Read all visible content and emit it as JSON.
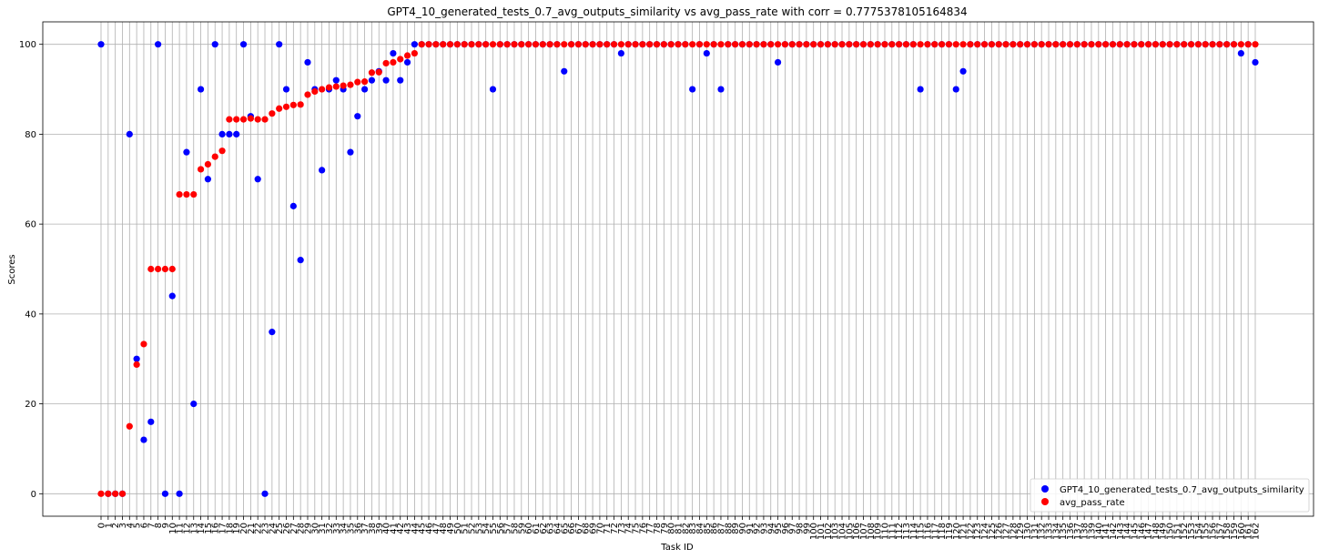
{
  "chart_data": {
    "type": "scatter",
    "title": "GPT4_10_generated_tests_0.7_avg_outputs_similarity vs avg_pass_rate with corr = 0.7775378105164834",
    "xlabel": "Task ID",
    "ylabel": "Scores",
    "x_range": [
      0,
      162
    ],
    "ylim": [
      -5,
      105
    ],
    "yticks": [
      0,
      20,
      40,
      60,
      80,
      100
    ],
    "grid": true,
    "legend_position": "lower right",
    "series": [
      {
        "name": "GPT4_10_generated_tests_0.7_avg_outputs_similarity",
        "color": "#0000ff",
        "values": [
          100,
          0,
          0,
          0,
          80,
          30,
          12,
          16,
          100,
          0,
          44,
          0,
          76,
          20,
          90,
          70,
          100,
          80,
          80,
          80,
          100,
          84,
          70,
          0,
          36,
          100,
          90,
          64,
          52,
          96,
          90,
          72,
          90,
          92,
          90,
          76,
          84,
          90,
          92,
          94,
          92,
          98,
          92,
          96,
          100,
          100,
          100,
          100,
          100,
          100,
          100,
          100,
          100,
          100,
          100,
          90,
          100,
          100,
          100,
          100,
          100,
          100,
          100,
          100,
          100,
          94,
          100,
          100,
          100,
          100,
          100,
          100,
          100,
          98,
          100,
          100,
          100,
          100,
          100,
          100,
          100,
          100,
          100,
          90,
          100,
          98,
          100,
          90,
          100,
          100,
          100,
          100,
          100,
          100,
          100,
          96,
          100,
          100,
          100,
          100,
          100,
          100,
          100,
          100,
          100,
          100,
          100,
          100,
          100,
          100,
          100,
          100,
          100,
          100,
          100,
          90,
          100,
          100,
          100,
          100,
          90,
          94,
          100,
          100,
          100,
          100,
          100,
          100,
          100,
          100,
          100,
          100,
          100,
          100,
          100,
          100,
          100,
          100,
          100,
          100,
          100,
          100,
          100,
          100,
          100,
          100,
          100,
          100,
          100,
          100,
          100,
          100,
          100,
          100,
          100,
          100,
          100,
          100,
          100,
          100,
          98,
          100,
          96
        ]
      },
      {
        "name": "avg_pass_rate",
        "color": "#ff0000",
        "values": [
          0,
          0,
          0,
          0,
          15,
          28.75,
          33.3,
          50,
          50,
          50,
          50,
          66.6,
          66.6,
          66.6,
          72.2,
          73.3,
          75,
          76.3,
          83.3,
          83.3,
          83.3,
          83.5,
          83.3,
          83.3,
          84.6,
          85.7,
          86.1,
          86.5,
          86.6,
          88.8,
          89.5,
          90,
          90.4,
          90.6,
          90.8,
          91,
          91.6,
          91.7,
          93.7,
          93.8,
          95.8,
          96,
          96.7,
          97.5,
          98,
          100,
          100,
          100,
          100,
          100,
          100,
          100,
          100,
          100,
          100,
          100,
          100,
          100,
          100,
          100,
          100,
          100,
          100,
          100,
          100,
          100,
          100,
          100,
          100,
          100,
          100,
          100,
          100,
          100,
          100,
          100,
          100,
          100,
          100,
          100,
          100,
          100,
          100,
          100,
          100,
          100,
          100,
          100,
          100,
          100,
          100,
          100,
          100,
          100,
          100,
          100,
          100,
          100,
          100,
          100,
          100,
          100,
          100,
          100,
          100,
          100,
          100,
          100,
          100,
          100,
          100,
          100,
          100,
          100,
          100,
          100,
          100,
          100,
          100,
          100,
          100,
          100,
          100,
          100,
          100,
          100,
          100,
          100,
          100,
          100,
          100,
          100,
          100,
          100,
          100,
          100,
          100,
          100,
          100,
          100,
          100,
          100,
          100,
          100,
          100,
          100,
          100,
          100,
          100,
          100,
          100,
          100,
          100,
          100,
          100,
          100,
          100,
          100,
          100,
          100,
          100,
          100,
          100
        ]
      }
    ]
  }
}
